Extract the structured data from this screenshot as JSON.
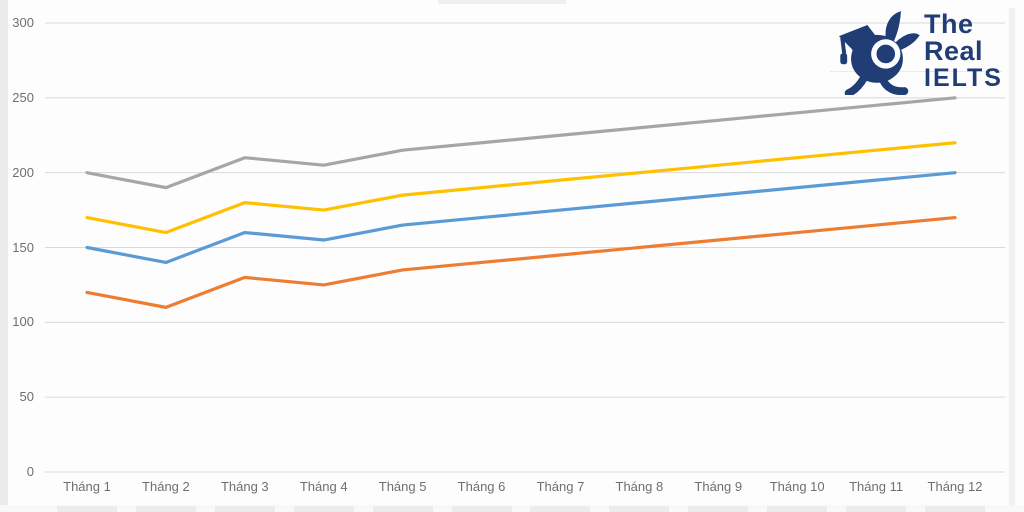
{
  "page": {
    "background": "#fdfdfd",
    "note_title_cropped": ""
  },
  "logo": {
    "line1": "The Real",
    "line2": "IELTS",
    "color": "#203d75",
    "mascot_icon": "rabbit-graduation-cap-mascot"
  },
  "chart_data": {
    "type": "line",
    "title": "",
    "categories": [
      "Tháng 1",
      "Tháng 2",
      "Tháng 3",
      "Tháng 4",
      "Tháng 5",
      "Tháng 6",
      "Tháng 7",
      "Tháng 8",
      "Tháng 9",
      "Tháng 10",
      "Tháng 11",
      "Tháng 12"
    ],
    "series": [
      {
        "name": "blue",
        "color": "#5b9bd5",
        "values": [
          150,
          140,
          160,
          155,
          165,
          170,
          175,
          180,
          185,
          190,
          195,
          200
        ]
      },
      {
        "name": "orange",
        "color": "#ed7d31",
        "values": [
          120,
          110,
          130,
          125,
          135,
          140,
          145,
          150,
          155,
          160,
          165,
          170
        ]
      },
      {
        "name": "gray",
        "color": "#a6a6a6",
        "values": [
          200,
          190,
          210,
          205,
          215,
          220,
          225,
          230,
          235,
          240,
          245,
          250
        ]
      },
      {
        "name": "yellow",
        "color": "#ffc000",
        "values": [
          170,
          160,
          180,
          175,
          185,
          190,
          195,
          200,
          205,
          210,
          215,
          220
        ]
      }
    ],
    "y_axis": {
      "ticks": [
        0,
        50,
        100,
        150,
        200,
        250,
        300
      ],
      "lim": [
        0,
        300
      ]
    },
    "x_axis_label": "",
    "y_axis_label": "",
    "grid": true,
    "legend_position": "none-visible",
    "gridline_color": "#d9d9d9",
    "tick_label_color": "#6f6f6f"
  }
}
